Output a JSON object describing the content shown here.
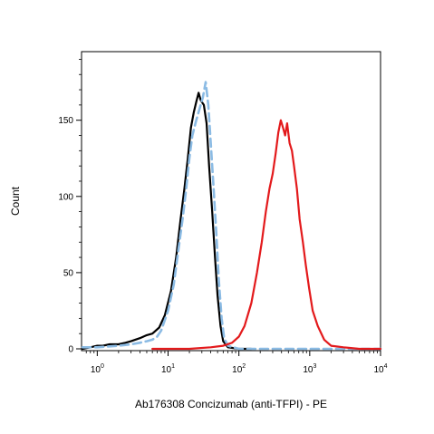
{
  "chart_data": {
    "type": "line",
    "title": "",
    "xlabel": "Ab176308 Concizumab (anti-TFPI) - PE",
    "ylabel": "Count",
    "x_scale": "log",
    "xlim": [
      0.6,
      10000
    ],
    "ylim": [
      0,
      195
    ],
    "x_ticks": [
      {
        "value": 1,
        "base": "10",
        "exp": "0"
      },
      {
        "value": 10,
        "base": "10",
        "exp": "1"
      },
      {
        "value": 100,
        "base": "10",
        "exp": "2"
      },
      {
        "value": 1000,
        "base": "10",
        "exp": "3"
      },
      {
        "value": 10000,
        "base": "10",
        "exp": "4"
      }
    ],
    "y_ticks": [
      {
        "value": 0,
        "label": "0"
      },
      {
        "value": 50,
        "label": "50"
      },
      {
        "value": 100,
        "label": "100"
      },
      {
        "value": 150,
        "label": "150"
      }
    ],
    "grid": false,
    "legend": "none",
    "series": [
      {
        "color": "#000000",
        "style": "solid",
        "points": [
          [
            0.62,
            0
          ],
          [
            0.8,
            1
          ],
          [
            1.0,
            2
          ],
          [
            1.2,
            2
          ],
          [
            1.5,
            3
          ],
          [
            2.0,
            3
          ],
          [
            2.5,
            4
          ],
          [
            3.0,
            5
          ],
          [
            4.0,
            7
          ],
          [
            5.0,
            9
          ],
          [
            6.0,
            10
          ],
          [
            7.5,
            14
          ],
          [
            9.0,
            22
          ],
          [
            11,
            38
          ],
          [
            13,
            60
          ],
          [
            15,
            85
          ],
          [
            17,
            105
          ],
          [
            19,
            125
          ],
          [
            21,
            145
          ],
          [
            23,
            155
          ],
          [
            25,
            162
          ],
          [
            27,
            168
          ],
          [
            29,
            163
          ],
          [
            32,
            160
          ],
          [
            35,
            148
          ],
          [
            38,
            120
          ],
          [
            42,
            90
          ],
          [
            46,
            60
          ],
          [
            50,
            35
          ],
          [
            55,
            15
          ],
          [
            60,
            5
          ],
          [
            70,
            1
          ],
          [
            100,
            0
          ],
          [
            150,
            0
          ]
        ]
      },
      {
        "color": "#8BBBE4",
        "style": "dashed",
        "points": [
          [
            0.62,
            1
          ],
          [
            1.0,
            1
          ],
          [
            2.0,
            2
          ],
          [
            3.0,
            3
          ],
          [
            4.0,
            4
          ],
          [
            5.0,
            5
          ],
          [
            6.0,
            6
          ],
          [
            7.0,
            8
          ],
          [
            8.0,
            12
          ],
          [
            10,
            25
          ],
          [
            12,
            42
          ],
          [
            14,
            65
          ],
          [
            16,
            85
          ],
          [
            18,
            105
          ],
          [
            20,
            125
          ],
          [
            22,
            140
          ],
          [
            25,
            150
          ],
          [
            28,
            158
          ],
          [
            31,
            165
          ],
          [
            34,
            175
          ],
          [
            37,
            160
          ],
          [
            40,
            135
          ],
          [
            44,
            105
          ],
          [
            48,
            75
          ],
          [
            52,
            45
          ],
          [
            57,
            20
          ],
          [
            62,
            7
          ],
          [
            70,
            2
          ],
          [
            100,
            0
          ],
          [
            1000,
            0
          ],
          [
            10000,
            0
          ]
        ]
      },
      {
        "color": "#E31A1C",
        "style": "solid",
        "points": [
          [
            6.0,
            0
          ],
          [
            20,
            0
          ],
          [
            40,
            1
          ],
          [
            60,
            2
          ],
          [
            80,
            4
          ],
          [
            100,
            8
          ],
          [
            120,
            15
          ],
          [
            150,
            30
          ],
          [
            180,
            50
          ],
          [
            210,
            70
          ],
          [
            240,
            90
          ],
          [
            270,
            105
          ],
          [
            300,
            115
          ],
          [
            330,
            128
          ],
          [
            360,
            142
          ],
          [
            390,
            150
          ],
          [
            420,
            145
          ],
          [
            450,
            140
          ],
          [
            480,
            148
          ],
          [
            520,
            135
          ],
          [
            560,
            130
          ],
          [
            600,
            120
          ],
          [
            660,
            105
          ],
          [
            720,
            85
          ],
          [
            800,
            70
          ],
          [
            880,
            55
          ],
          [
            980,
            40
          ],
          [
            1100,
            25
          ],
          [
            1300,
            15
          ],
          [
            1600,
            6
          ],
          [
            2000,
            2
          ],
          [
            3000,
            1
          ],
          [
            5000,
            0
          ],
          [
            10000,
            0
          ]
        ]
      }
    ]
  }
}
